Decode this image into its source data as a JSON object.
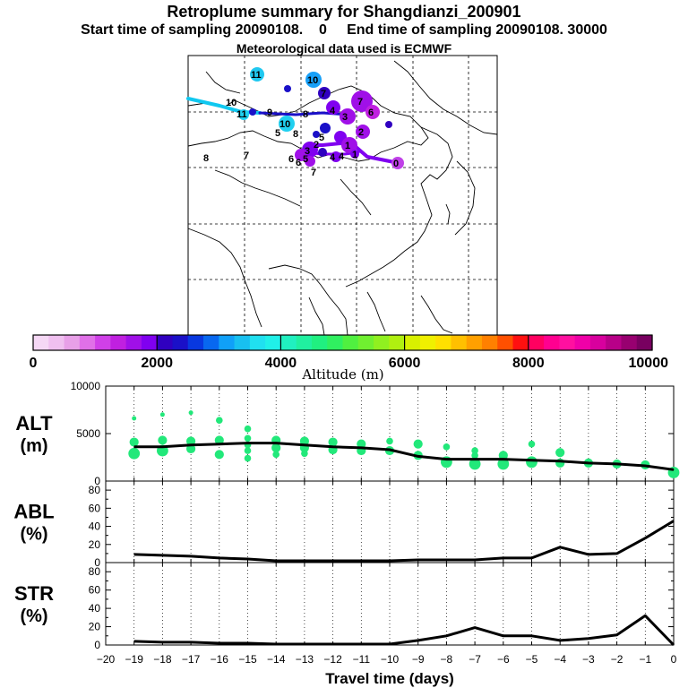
{
  "header": {
    "title": "Retroplume summary for Shangdianzi_200901",
    "line2": "Start time of sampling 20090108.    0     End time of sampling 20090108. 30000",
    "line3": "Meteorological data used is ECMWF"
  },
  "colors": {
    "colorbar": [
      "#f5d8f5",
      "#f0c0f0",
      "#e8a0e8",
      "#e070e8",
      "#d040e8",
      "#c020e0",
      "#a010e8",
      "#8000f0",
      "#3000c0",
      "#1a10c8",
      "#0838e0",
      "#0868f0",
      "#10a0f8",
      "#18c0f0",
      "#20e0f0",
      "#20f0e8",
      "#20f0c0",
      "#20f0a0",
      "#20f080",
      "#30f060",
      "#50f040",
      "#70f030",
      "#90f020",
      "#b0f010",
      "#d8f000",
      "#f0f000",
      "#ffe000",
      "#ffc000",
      "#ffa000",
      "#ff8000",
      "#ff5000",
      "#ff1010",
      "#ff0060",
      "#ff0090",
      "#ff10a0",
      "#f000a8",
      "#d8009e",
      "#b80088",
      "#980070",
      "#780060"
    ],
    "scatter": "#22e87a",
    "line": "#000000"
  },
  "map": {
    "trajectory_labels": [
      "11",
      "10",
      "10",
      "11",
      "10",
      "9",
      "8",
      "7",
      "6",
      "5",
      "4",
      "3",
      "2",
      "1",
      "0",
      "8",
      "7",
      "6",
      "5",
      "4",
      "3",
      "2",
      "1",
      "7",
      "6",
      "5",
      "4",
      "8",
      "7"
    ]
  },
  "colorbar": {
    "ticks": [
      "0",
      "2000",
      "4000",
      "6000",
      "8000",
      "10000"
    ],
    "label": "Altitude (m)"
  },
  "chart_data": [
    {
      "type": "line",
      "title": "ALT",
      "ylabel": "ALT (m)",
      "ylabel_top": "ALT",
      "ylabel_bottom": "(m)",
      "ylim": [
        0,
        10000
      ],
      "yticks": [
        "0",
        "5000",
        "10000"
      ],
      "x": [
        -19,
        -18,
        -17,
        -16,
        -15,
        -14,
        -13,
        -12,
        -11,
        -10,
        -9,
        -8,
        -7,
        -6,
        -5,
        -4,
        -3,
        -2,
        -1,
        0
      ],
      "values": [
        3600,
        3600,
        3800,
        3900,
        4000,
        4000,
        3800,
        3600,
        3500,
        3300,
        2600,
        2300,
        2300,
        2300,
        2200,
        2100,
        1900,
        1800,
        1600,
        1200
      ],
      "scatter": [
        {
          "x": -19,
          "y": 6600,
          "s": 1
        },
        {
          "x": -19,
          "y": 4100,
          "s": 3
        },
        {
          "x": -19,
          "y": 2900,
          "s": 4
        },
        {
          "x": -18,
          "y": 7000,
          "s": 1
        },
        {
          "x": -18,
          "y": 4300,
          "s": 3
        },
        {
          "x": -18,
          "y": 3200,
          "s": 4
        },
        {
          "x": -17,
          "y": 7200,
          "s": 1
        },
        {
          "x": -17,
          "y": 4200,
          "s": 3
        },
        {
          "x": -17,
          "y": 3400,
          "s": 3
        },
        {
          "x": -16,
          "y": 6400,
          "s": 2
        },
        {
          "x": -16,
          "y": 4300,
          "s": 3
        },
        {
          "x": -16,
          "y": 2800,
          "s": 3
        },
        {
          "x": -15,
          "y": 5500,
          "s": 2
        },
        {
          "x": -15,
          "y": 4500,
          "s": 2
        },
        {
          "x": -15,
          "y": 3800,
          "s": 2
        },
        {
          "x": -15,
          "y": 3200,
          "s": 2
        },
        {
          "x": -15,
          "y": 2400,
          "s": 2
        },
        {
          "x": -14,
          "y": 4300,
          "s": 3
        },
        {
          "x": -14,
          "y": 3500,
          "s": 3
        },
        {
          "x": -14,
          "y": 2800,
          "s": 2
        },
        {
          "x": -13,
          "y": 4200,
          "s": 3
        },
        {
          "x": -13,
          "y": 3500,
          "s": 3
        },
        {
          "x": -13,
          "y": 2900,
          "s": 2
        },
        {
          "x": -12,
          "y": 4100,
          "s": 3
        },
        {
          "x": -12,
          "y": 3300,
          "s": 3
        },
        {
          "x": -11,
          "y": 3900,
          "s": 3
        },
        {
          "x": -11,
          "y": 3200,
          "s": 3
        },
        {
          "x": -10,
          "y": 4200,
          "s": 2
        },
        {
          "x": -10,
          "y": 3200,
          "s": 3
        },
        {
          "x": -9,
          "y": 3900,
          "s": 3
        },
        {
          "x": -9,
          "y": 2700,
          "s": 3
        },
        {
          "x": -8,
          "y": 3600,
          "s": 2
        },
        {
          "x": -8,
          "y": 2000,
          "s": 4
        },
        {
          "x": -7,
          "y": 3200,
          "s": 2
        },
        {
          "x": -7,
          "y": 2700,
          "s": 2
        },
        {
          "x": -7,
          "y": 1800,
          "s": 4
        },
        {
          "x": -6,
          "y": 2700,
          "s": 3
        },
        {
          "x": -6,
          "y": 1800,
          "s": 4
        },
        {
          "x": -5,
          "y": 3900,
          "s": 2
        },
        {
          "x": -5,
          "y": 2000,
          "s": 4
        },
        {
          "x": -4,
          "y": 3000,
          "s": 3
        },
        {
          "x": -4,
          "y": 1900,
          "s": 3
        },
        {
          "x": -3,
          "y": 1900,
          "s": 3
        },
        {
          "x": -2,
          "y": 1800,
          "s": 3
        },
        {
          "x": -1,
          "y": 1700,
          "s": 3
        },
        {
          "x": 0,
          "y": 900,
          "s": 4
        }
      ]
    },
    {
      "type": "line",
      "title": "ABL",
      "ylabel": "ABL (%)",
      "ylabel_top": "ABL",
      "ylabel_bottom": "(%)",
      "ylim": [
        0,
        90
      ],
      "yticks": [
        "0",
        "20",
        "40",
        "60",
        "80"
      ],
      "x": [
        -19,
        -18,
        -17,
        -16,
        -15,
        -14,
        -13,
        -12,
        -11,
        -10,
        -9,
        -8,
        -7,
        -6,
        -5,
        -4,
        -3,
        -2,
        -1,
        0
      ],
      "values": [
        9,
        8,
        7,
        5,
        4,
        2,
        2,
        2,
        2,
        2,
        3,
        3,
        3,
        5,
        5,
        17,
        9,
        10,
        27,
        46
      ]
    },
    {
      "type": "line",
      "title": "STR",
      "ylabel": "STR (%)",
      "ylabel_top": "STR",
      "ylabel_bottom": "(%)",
      "ylim": [
        0,
        90
      ],
      "yticks": [
        "0",
        "20",
        "40",
        "60",
        "80"
      ],
      "x": [
        -19,
        -18,
        -17,
        -16,
        -15,
        -14,
        -13,
        -12,
        -11,
        -10,
        -9,
        -8,
        -7,
        -6,
        -5,
        -4,
        -3,
        -2,
        -1,
        0
      ],
      "values": [
        4,
        3,
        3,
        2,
        2,
        1,
        1,
        1,
        1,
        1,
        5,
        10,
        19,
        10,
        10,
        5,
        7,
        11,
        32,
        0
      ],
      "xlabel": "Travel time (days)",
      "xticks": [
        "−20",
        "−19",
        "−18",
        "−17",
        "−16",
        "−15",
        "−14",
        "−13",
        "−12",
        "−11",
        "−10",
        "−9",
        "−8",
        "−7",
        "−6",
        "−5",
        "−4",
        "−3",
        "−2",
        "−1",
        "0"
      ]
    }
  ]
}
